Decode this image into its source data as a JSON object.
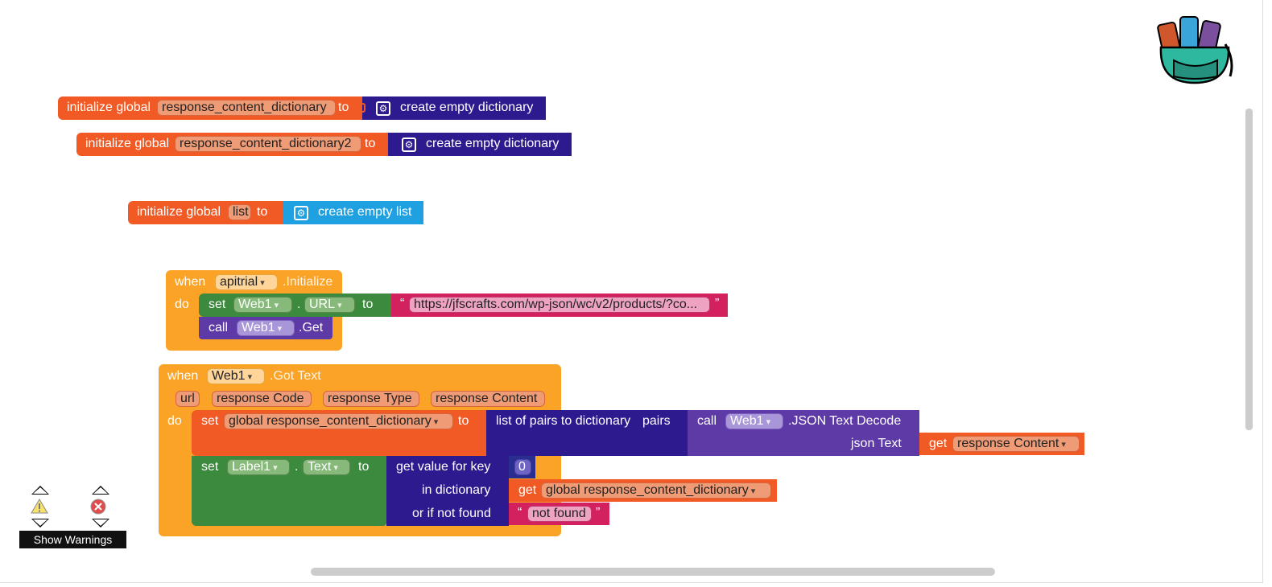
{
  "colors": {
    "variable": "#f15a24",
    "dictionary": "#2e1a8f",
    "list": "#1fa0e0",
    "event": "#faa326",
    "component_set": "#3b8a3e",
    "component_call": "#5e3aa6",
    "text": "#d3215f"
  },
  "globals": [
    {
      "keyword": "initialize global",
      "name": "response_content_dictionary",
      "to": "to",
      "value": "create empty dictionary"
    },
    {
      "keyword": "initialize global",
      "name": "response_content_dictionary2",
      "to": "to",
      "value": "create empty dictionary"
    },
    {
      "keyword": "initialize global",
      "name": "list",
      "to": "to",
      "value": "create empty list"
    }
  ],
  "init_event": {
    "when": "when",
    "component": "apitrial",
    "event": ".Initialize",
    "do": "do",
    "set": "set",
    "set_component": "Web1",
    "dot": ".",
    "set_property": "URL",
    "to": "to",
    "open_quote": "“",
    "url_value": "https://jfscrafts.com/wp-json/wc/v2/products/?co...",
    "close_quote": "”",
    "call": "call",
    "call_component": "Web1",
    "call_method": ".Get"
  },
  "gottext_event": {
    "when": "when",
    "component": "Web1",
    "event": ".Got Text",
    "params": [
      "url",
      "response Code",
      "response Type",
      "response Content"
    ],
    "do": "do",
    "set1": {
      "set": "set",
      "variable": "global response_content_dictionary",
      "to": "to",
      "func": "list of pairs to dictionary",
      "pairs": "pairs",
      "call": "call",
      "call_component": "Web1",
      "call_method": ".JSON Text Decode",
      "json_text": "json Text",
      "get": "get",
      "get_var": "response Content"
    },
    "set2": {
      "set": "set",
      "component": "Label1",
      "dot": ".",
      "property": "Text",
      "to": "to",
      "func": "get value for key",
      "key": "0",
      "in_dictionary": "in dictionary",
      "get": "get",
      "get_var": "global response_content_dictionary",
      "or_if_not_found": "or if not found",
      "open_quote": "“",
      "not_found": "not found",
      "close_quote": "”"
    }
  },
  "warnings": {
    "show_label": "Show Warnings",
    "warning_icon": "warning-triangle-icon",
    "error_icon": "error-circle-icon"
  },
  "backpack_icon": "backpack-icon"
}
